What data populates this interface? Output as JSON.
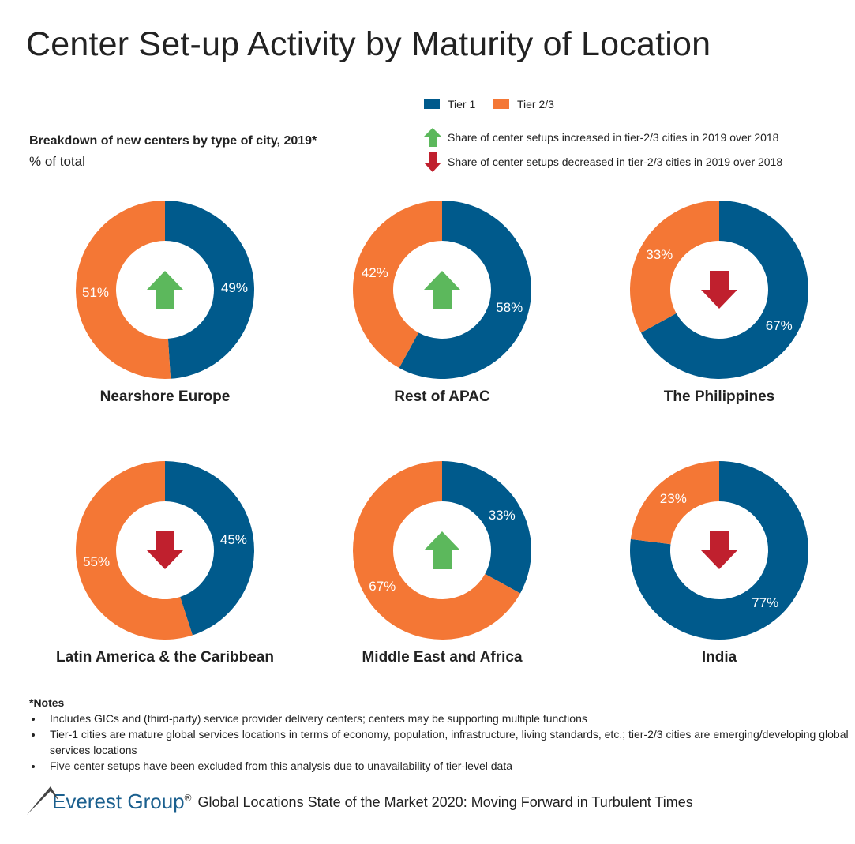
{
  "title": "Center Set-up Activity by Maturity of Location",
  "subtitle": "Breakdown of new centers by type of city, 2019*",
  "unit": "% of total",
  "legend": {
    "tier1": "Tier 1",
    "tier23": "Tier 2/3",
    "up": "Share of center setups increased in tier-2/3 cities in 2019 over 2018",
    "down": "Share of center setups decreased in tier-2/3 cities in 2019 over 2018"
  },
  "colors": {
    "tier1": "#005a8c",
    "tier23": "#f47735",
    "up": "#5cb85c",
    "down": "#c0202e"
  },
  "chart_data": [
    {
      "type": "pie",
      "title": "Nearshore Europe",
      "tier1": 49,
      "tier23": 51,
      "trend": "up"
    },
    {
      "type": "pie",
      "title": "Rest of APAC",
      "tier1": 58,
      "tier23": 42,
      "trend": "up"
    },
    {
      "type": "pie",
      "title": "The Philippines",
      "tier1": 67,
      "tier23": 33,
      "trend": "down"
    },
    {
      "type": "pie",
      "title": "Latin America & the Caribbean",
      "tier1": 45,
      "tier23": 55,
      "trend": "down"
    },
    {
      "type": "pie",
      "title": "Middle East and Africa",
      "tier1": 33,
      "tier23": 67,
      "trend": "up"
    },
    {
      "type": "pie",
      "title": "India",
      "tier1": 77,
      "tier23": 23,
      "trend": "down"
    }
  ],
  "notes": {
    "heading": "*Notes",
    "items": [
      "Includes GICs and (third-party) service provider delivery centers; centers may be supporting multiple functions",
      "Tier-1 cities are mature global services locations in terms of economy, population, infrastructure, living standards, etc.; tier-2/3 cities are emerging/developing global services locations",
      "Five center setups have been excluded from this analysis due to unavailability of tier-level data"
    ]
  },
  "footer": {
    "brand": "Everest Group",
    "reg": "®",
    "text": "Global Locations State of the Market 2020: Moving Forward in Turbulent Times"
  }
}
